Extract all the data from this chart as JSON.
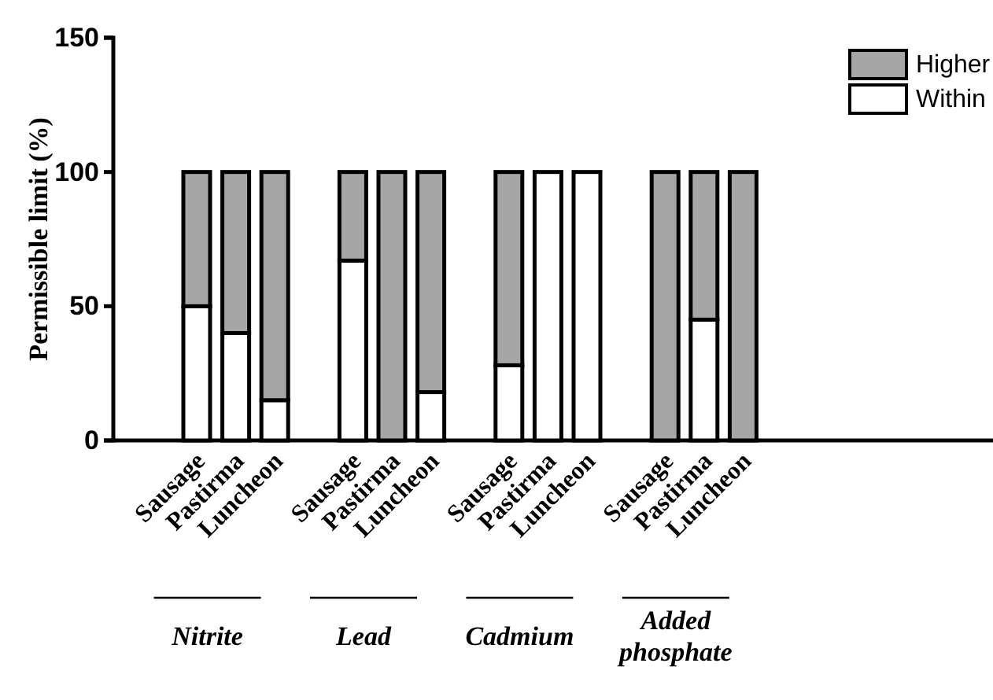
{
  "chart_data": {
    "type": "bar",
    "stacked": true,
    "ylabel": "Permissible limit (%)",
    "categories": [
      "Sausage",
      "Pastirma",
      "Luncheon",
      "Sausage",
      "Pastirma",
      "Luncheon",
      "Sausage",
      "Pastirma",
      "Luncheon",
      "Sausage",
      "Pastirma",
      "Luncheon"
    ],
    "series": [
      {
        "name": "Within",
        "color": "#ffffff",
        "values": [
          50,
          40,
          15,
          67,
          0,
          18,
          28,
          100,
          100,
          0,
          45,
          0
        ]
      },
      {
        "name": "Higher",
        "color": "#a6a6a6",
        "values": [
          50,
          60,
          85,
          33,
          100,
          82,
          72,
          0,
          0,
          100,
          55,
          100
        ]
      }
    ],
    "ylim": [
      0,
      150
    ],
    "yticks": [
      0,
      50,
      100,
      150
    ],
    "grid": false,
    "legend": "top right",
    "annotations": [
      "Nitrite",
      "Lead",
      "Cadmium",
      "Added phosphate"
    ]
  }
}
